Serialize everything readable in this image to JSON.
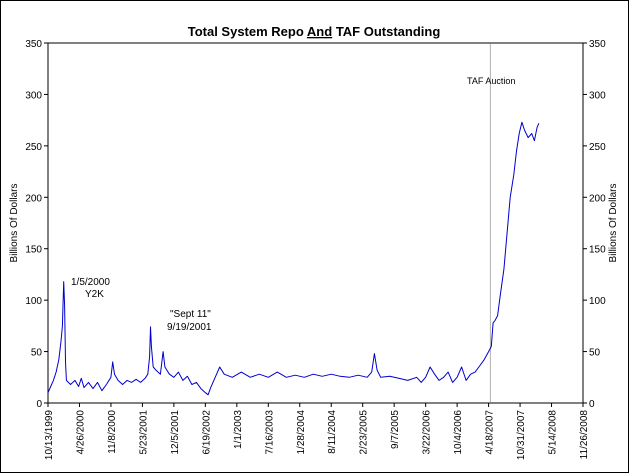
{
  "chart_data": {
    "type": "line",
    "title_parts": [
      "Total System Repo ",
      "And",
      " TAF Outstanding"
    ],
    "ylabel_left": "Billions Of Dollars",
    "ylabel_right": "Billions Of Dollars",
    "ylim": [
      0,
      350
    ],
    "yticks": [
      0,
      50,
      100,
      150,
      200,
      250,
      300,
      350
    ],
    "xlim": [
      "10/13/1999",
      "11/26/2008"
    ],
    "xticks": [
      "10/13/1999",
      "4/26/2000",
      "11/8/2000",
      "5/23/2001",
      "12/5/2001",
      "6/19/2002",
      "1/1/2003",
      "7/16/2003",
      "1/28/2004",
      "8/11/2004",
      "2/23/2005",
      "9/7/2005",
      "3/22/2006",
      "10/4/2006",
      "4/18/2007",
      "10/31/2007",
      "5/14/2008",
      "11/26/2008"
    ],
    "series": [
      {
        "name": "Total System Repo and TAF Outstanding",
        "color": "#0000cc",
        "points": [
          [
            0.0,
            10
          ],
          [
            0.3,
            16
          ],
          [
            0.6,
            22
          ],
          [
            0.9,
            30
          ],
          [
            1.2,
            42
          ],
          [
            1.45,
            60
          ],
          [
            1.6,
            75
          ],
          [
            1.75,
            118
          ],
          [
            1.85,
            95
          ],
          [
            1.95,
            40
          ],
          [
            2.05,
            22
          ],
          [
            2.5,
            18
          ],
          [
            3.0,
            22
          ],
          [
            3.4,
            16
          ],
          [
            3.7,
            24
          ],
          [
            4.0,
            15
          ],
          [
            4.5,
            20
          ],
          [
            5.0,
            14
          ],
          [
            5.5,
            20
          ],
          [
            6.0,
            12
          ],
          [
            6.5,
            18
          ],
          [
            7.0,
            25
          ],
          [
            7.2,
            40
          ],
          [
            7.4,
            28
          ],
          [
            7.8,
            22
          ],
          [
            8.3,
            18
          ],
          [
            8.8,
            22
          ],
          [
            9.3,
            20
          ],
          [
            9.8,
            23
          ],
          [
            10.3,
            20
          ],
          [
            10.8,
            24
          ],
          [
            11.1,
            28
          ],
          [
            11.3,
            45
          ],
          [
            11.4,
            74
          ],
          [
            11.5,
            55
          ],
          [
            11.7,
            35
          ],
          [
            12.0,
            32
          ],
          [
            12.5,
            28
          ],
          [
            12.8,
            50
          ],
          [
            13.0,
            35
          ],
          [
            13.5,
            28
          ],
          [
            14.0,
            25
          ],
          [
            14.5,
            30
          ],
          [
            15.0,
            22
          ],
          [
            15.5,
            26
          ],
          [
            16.0,
            18
          ],
          [
            16.5,
            20
          ],
          [
            17.0,
            14
          ],
          [
            17.5,
            10
          ],
          [
            17.8,
            8
          ],
          [
            18.1,
            15
          ],
          [
            18.6,
            25
          ],
          [
            19.1,
            35
          ],
          [
            19.6,
            28
          ],
          [
            20.5,
            25
          ],
          [
            21.5,
            30
          ],
          [
            22.5,
            25
          ],
          [
            23.5,
            28
          ],
          [
            24.5,
            25
          ],
          [
            25.5,
            30
          ],
          [
            26.5,
            25
          ],
          [
            27.5,
            27
          ],
          [
            28.5,
            25
          ],
          [
            29.5,
            28
          ],
          [
            30.5,
            26
          ],
          [
            31.5,
            28
          ],
          [
            32.5,
            26
          ],
          [
            33.5,
            25
          ],
          [
            34.5,
            27
          ],
          [
            35.5,
            25
          ],
          [
            36.0,
            30
          ],
          [
            36.3,
            48
          ],
          [
            36.6,
            32
          ],
          [
            37.0,
            25
          ],
          [
            38.0,
            26
          ],
          [
            39.0,
            24
          ],
          [
            40.0,
            22
          ],
          [
            41.0,
            25
          ],
          [
            41.5,
            20
          ],
          [
            42.0,
            25
          ],
          [
            42.5,
            35
          ],
          [
            43.0,
            28
          ],
          [
            43.5,
            22
          ],
          [
            44.0,
            25
          ],
          [
            44.5,
            30
          ],
          [
            45.0,
            20
          ],
          [
            45.5,
            25
          ],
          [
            46.0,
            35
          ],
          [
            46.5,
            22
          ],
          [
            47.0,
            28
          ],
          [
            47.5,
            30
          ],
          [
            48.0,
            36
          ],
          [
            48.5,
            42
          ],
          [
            49.0,
            50
          ],
          [
            49.3,
            55
          ],
          [
            49.5,
            78
          ],
          [
            49.7,
            80
          ],
          [
            50.0,
            85
          ],
          [
            50.3,
            105
          ],
          [
            50.7,
            130
          ],
          [
            51.0,
            160
          ],
          [
            51.4,
            200
          ],
          [
            51.8,
            222
          ],
          [
            52.1,
            245
          ],
          [
            52.4,
            262
          ],
          [
            52.7,
            273
          ],
          [
            53.0,
            265
          ],
          [
            53.4,
            258
          ],
          [
            53.8,
            262
          ],
          [
            54.1,
            255
          ],
          [
            54.4,
            268
          ],
          [
            54.6,
            272
          ]
        ]
      }
    ],
    "annotations": [
      {
        "id": "y2k_date",
        "text": "1/5/2000"
      },
      {
        "id": "y2k",
        "text": "Y2K"
      },
      {
        "id": "sept11",
        "text": "\"Sept 11\""
      },
      {
        "id": "sept11_date",
        "text": "9/19/2001"
      },
      {
        "id": "taf",
        "text": "TAF Auction"
      }
    ],
    "vertical_marker_x": 49.2,
    "grid": false,
    "legend": "none"
  }
}
